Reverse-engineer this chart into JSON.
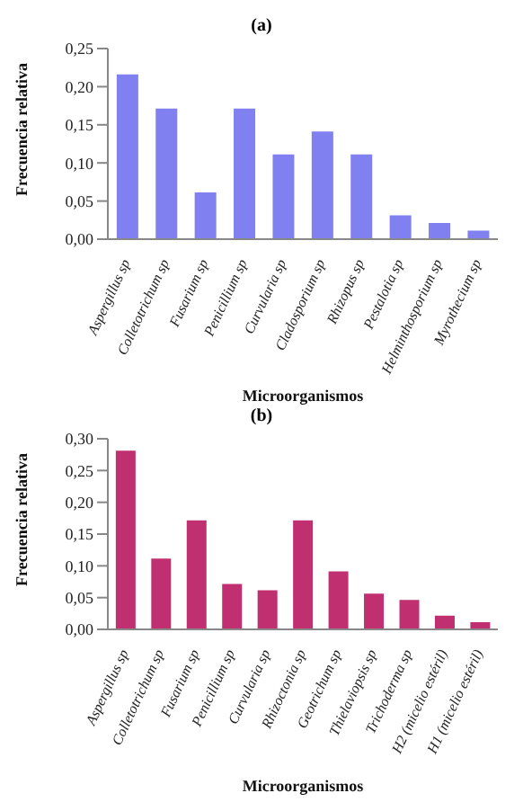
{
  "chart_data": [
    {
      "type": "bar",
      "title": "(a)",
      "xlabel": "Microorganismos",
      "ylabel": "Frecuencia relativa",
      "categories": [
        "Aspergillus sp",
        "Colletotrichum sp",
        "Fusarium sp",
        "Penicillium sp",
        "Curvularia sp",
        "Cladosporium sp",
        "Rhizopus sp",
        "Pestalotia sp",
        "Helminthosporium sp",
        "Myrothecium sp"
      ],
      "series": [
        {
          "color": "#8080f0",
          "values": [
            0.215,
            0.17,
            0.06,
            0.17,
            0.11,
            0.14,
            0.11,
            0.03,
            0.02,
            0.01
          ]
        }
      ],
      "ylim": [
        0,
        0.25
      ],
      "yticks": [
        {
          "value": 0,
          "label": "0,00"
        },
        {
          "value": 0.05,
          "label": "0,05"
        },
        {
          "value": 0.1,
          "label": "0,10"
        },
        {
          "value": 0.15,
          "label": "0,15"
        },
        {
          "value": 0.2,
          "label": "0,20"
        },
        {
          "value": 0.25,
          "label": "0,25"
        }
      ],
      "grid": false,
      "legend": false
    },
    {
      "type": "bar",
      "title": "(b)",
      "xlabel": "Microorganismos",
      "ylabel": "Frecuencia relativa",
      "categories": [
        "Aspergillus sp",
        "Colletotrichum sp",
        "Fusarium sp",
        "Penicillium sp",
        "Curvularia sp",
        "Rhizoctonia sp",
        "Geotrichum sp",
        "Thielaviopsis sp",
        "Trichoderma sp",
        "H2 (micelio estéril)",
        "H1 (micelio estéril)"
      ],
      "series": [
        {
          "color": "#c03070",
          "values": [
            0.28,
            0.11,
            0.17,
            0.07,
            0.06,
            0.17,
            0.09,
            0.055,
            0.045,
            0.02,
            0.01
          ]
        }
      ],
      "ylim": [
        0,
        0.3
      ],
      "yticks": [
        {
          "value": 0,
          "label": "0,00"
        },
        {
          "value": 0.05,
          "label": "0,05"
        },
        {
          "value": 0.1,
          "label": "0,10"
        },
        {
          "value": 0.15,
          "label": "0,15"
        },
        {
          "value": 0.2,
          "label": "0,20"
        },
        {
          "value": 0.25,
          "label": "0,25"
        },
        {
          "value": 0.3,
          "label": "0,30"
        }
      ],
      "grid": false,
      "legend": false
    }
  ]
}
